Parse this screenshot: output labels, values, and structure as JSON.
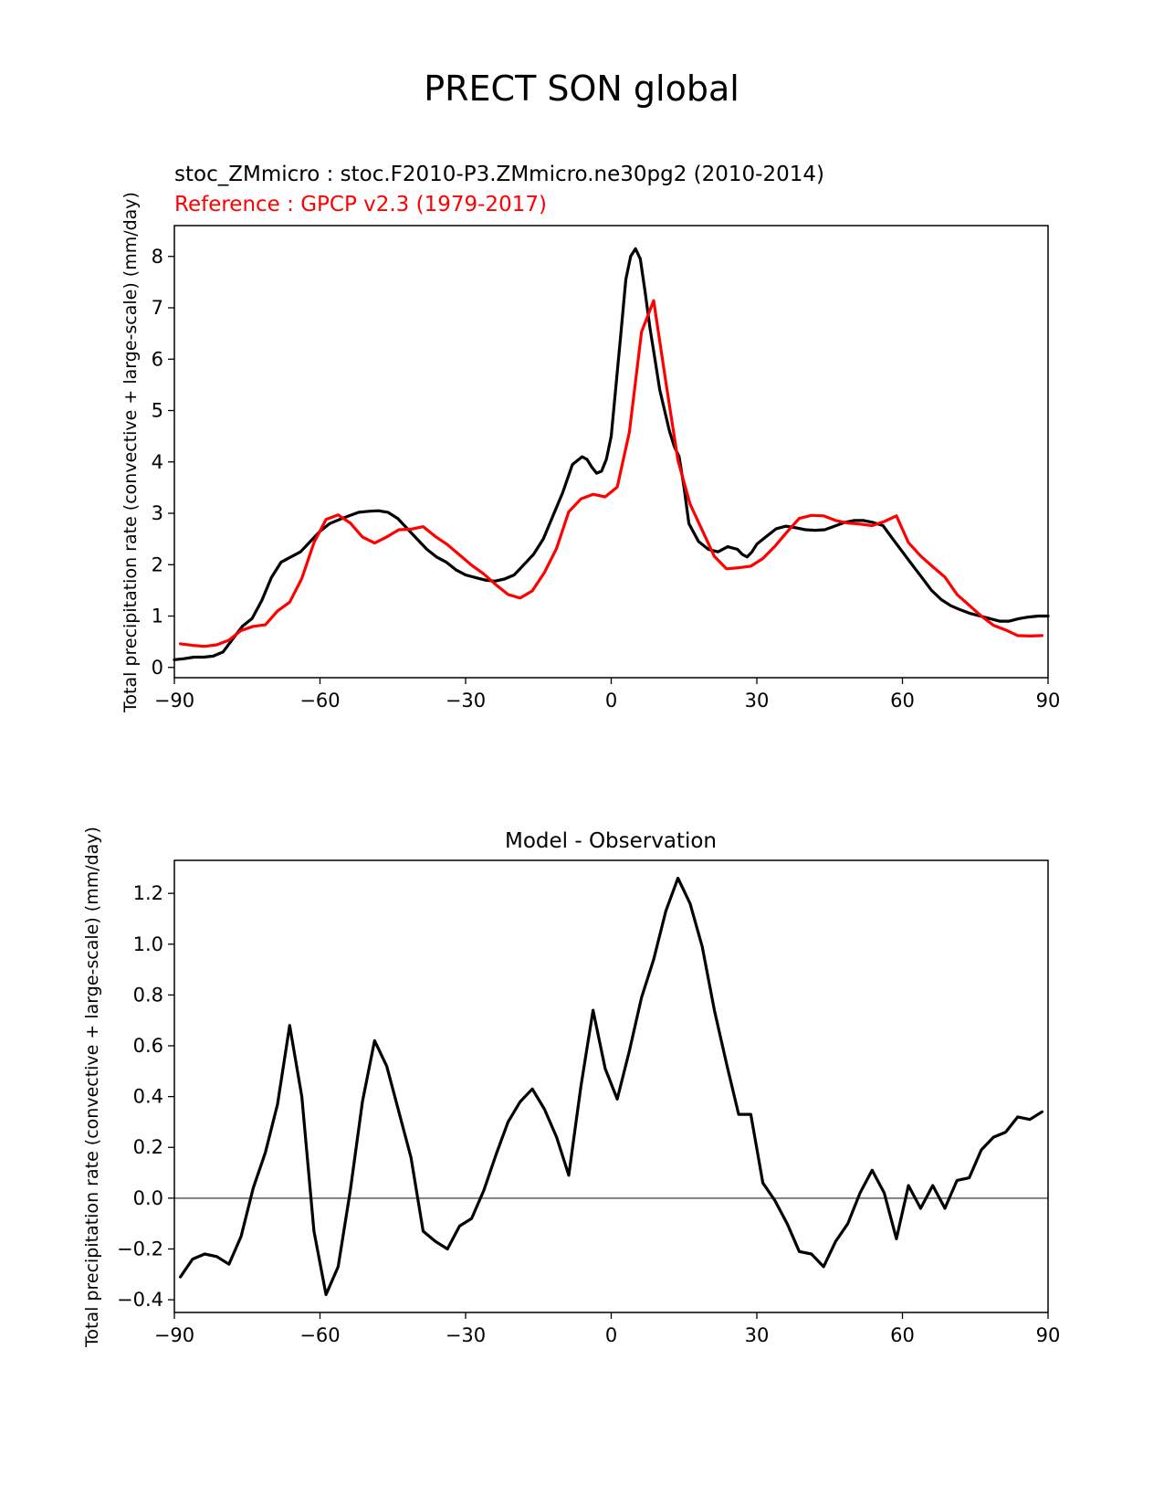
{
  "figure": {
    "suptitle": "PRECT SON global"
  },
  "chart_data": [
    {
      "type": "line",
      "title_left": "stoc_ZMmicro : stoc.F2010-P3.ZMmicro.ne30pg2 (2010-2014)",
      "title_left2": "Reference : GPCP v2.3 (1979-2017)",
      "title_left2_color": "#ff0000",
      "xlabel": "",
      "ylabel": "Total precipitation rate (convective + large-scale) (mm/day)",
      "xlim": [
        -90,
        90
      ],
      "ylim": [
        -0.2,
        8.6
      ],
      "xticks": [
        "−90",
        "−60",
        "−30",
        "0",
        "30",
        "60",
        "90"
      ],
      "xtick_values": [
        -90,
        -60,
        -30,
        0,
        30,
        60,
        90
      ],
      "yticks": [
        "0",
        "1",
        "2",
        "3",
        "4",
        "5",
        "6",
        "7",
        "8"
      ],
      "ytick_values": [
        0,
        1,
        2,
        3,
        4,
        5,
        6,
        7,
        8
      ],
      "grid": false,
      "series": [
        {
          "color": "#000000",
          "x": [
            -90,
            -88,
            -86,
            -84,
            -82,
            -80,
            -78,
            -76,
            -74,
            -72,
            -70,
            -68,
            -66,
            -64,
            -62,
            -60,
            -58,
            -56,
            -54,
            -52,
            -50,
            -48,
            -46,
            -44,
            -42,
            -40,
            -38,
            -36,
            -34,
            -32,
            -30,
            -28,
            -26,
            -24,
            -22,
            -20,
            -18,
            -16,
            -14,
            -12,
            -10,
            -8,
            -6,
            -5,
            -4,
            -3,
            -2,
            -1,
            0,
            1,
            2,
            3,
            4,
            5,
            6,
            7,
            8,
            9,
            10,
            11,
            12,
            13,
            14,
            15,
            16,
            18,
            20,
            22,
            24,
            26,
            27,
            28,
            29,
            30,
            32,
            34,
            36,
            38,
            40,
            42,
            44,
            46,
            48,
            50,
            52,
            54,
            56,
            58,
            60,
            62,
            64,
            66,
            68,
            70,
            72,
            74,
            76,
            78,
            80,
            82,
            84,
            86,
            88,
            90
          ],
          "values": [
            0.15,
            0.17,
            0.2,
            0.2,
            0.22,
            0.3,
            0.55,
            0.8,
            0.95,
            1.3,
            1.75,
            2.05,
            2.15,
            2.25,
            2.45,
            2.65,
            2.8,
            2.88,
            2.95,
            3.02,
            3.04,
            3.05,
            3.02,
            2.9,
            2.7,
            2.5,
            2.3,
            2.15,
            2.05,
            1.9,
            1.8,
            1.75,
            1.7,
            1.68,
            1.72,
            1.8,
            2.0,
            2.2,
            2.5,
            2.95,
            3.4,
            3.95,
            4.1,
            4.05,
            3.9,
            3.78,
            3.82,
            4.05,
            4.5,
            5.5,
            6.5,
            7.55,
            8.0,
            8.15,
            7.95,
            7.3,
            6.6,
            6.0,
            5.4,
            5.0,
            4.6,
            4.3,
            4.1,
            3.5,
            2.8,
            2.45,
            2.3,
            2.25,
            2.35,
            2.3,
            2.2,
            2.15,
            2.25,
            2.4,
            2.55,
            2.7,
            2.75,
            2.72,
            2.68,
            2.67,
            2.68,
            2.75,
            2.82,
            2.86,
            2.86,
            2.82,
            2.76,
            2.5,
            2.25,
            2.0,
            1.75,
            1.5,
            1.32,
            1.2,
            1.12,
            1.05,
            1.0,
            0.95,
            0.9,
            0.9,
            0.95,
            0.98,
            1.0,
            1.0
          ]
        },
        {
          "color": "#ff0000",
          "x": [
            -88.75,
            -86.25,
            -83.75,
            -81.25,
            -78.75,
            -76.25,
            -73.75,
            -71.25,
            -68.75,
            -66.25,
            -63.75,
            -61.25,
            -58.75,
            -56.25,
            -53.75,
            -51.25,
            -48.75,
            -46.25,
            -43.75,
            -41.25,
            -38.75,
            -36.25,
            -33.75,
            -31.25,
            -28.75,
            -26.25,
            -23.75,
            -21.25,
            -18.75,
            -16.25,
            -13.75,
            -11.25,
            -8.75,
            -6.25,
            -3.75,
            -1.25,
            1.25,
            3.75,
            6.25,
            8.75,
            11.25,
            13.75,
            16.25,
            18.75,
            21.25,
            23.75,
            26.25,
            28.75,
            31.25,
            33.75,
            36.25,
            38.75,
            41.25,
            43.75,
            46.25,
            48.75,
            51.25,
            53.75,
            56.25,
            58.75,
            61.25,
            63.75,
            66.25,
            68.75,
            71.25,
            73.75,
            76.25,
            78.75,
            81.25,
            83.75,
            86.25,
            88.75
          ],
          "values": [
            0.46,
            0.43,
            0.41,
            0.44,
            0.53,
            0.72,
            0.8,
            0.83,
            1.1,
            1.27,
            1.73,
            2.43,
            2.88,
            2.97,
            2.81,
            2.54,
            2.42,
            2.54,
            2.68,
            2.69,
            2.74,
            2.55,
            2.39,
            2.19,
            1.99,
            1.82,
            1.61,
            1.42,
            1.35,
            1.49,
            1.85,
            2.32,
            3.03,
            3.28,
            3.37,
            3.32,
            3.51,
            4.58,
            6.53,
            7.14,
            5.56,
            4.03,
            3.18,
            2.67,
            2.16,
            1.92,
            1.94,
            1.97,
            2.12,
            2.36,
            2.64,
            2.9,
            2.96,
            2.95,
            2.86,
            2.81,
            2.79,
            2.76,
            2.84,
            2.95,
            2.43,
            2.17,
            1.96,
            1.76,
            1.42,
            1.21,
            1.0,
            0.82,
            0.73,
            0.62,
            0.61,
            0.62
          ]
        }
      ]
    },
    {
      "type": "line",
      "title": "Model - Observation",
      "xlabel": "",
      "ylabel": "Total precipitation rate (convective + large-scale) (mm/day)",
      "xlim": [
        -90,
        90
      ],
      "ylim": [
        -0.45,
        1.33
      ],
      "xticks": [
        "−90",
        "−60",
        "−30",
        "0",
        "30",
        "60",
        "90"
      ],
      "xtick_values": [
        -90,
        -60,
        -30,
        0,
        30,
        60,
        90
      ],
      "yticks": [
        "−0.4",
        "−0.2",
        "0.0",
        "0.2",
        "0.4",
        "0.6",
        "0.8",
        "1.0",
        "1.2"
      ],
      "ytick_values": [
        -0.4,
        -0.2,
        0.0,
        0.2,
        0.4,
        0.6,
        0.8,
        1.0,
        1.2
      ],
      "grid": false,
      "zero_line_color": "#808080",
      "series": [
        {
          "color": "#000000",
          "x": [
            -88.75,
            -86.25,
            -83.75,
            -81.25,
            -78.75,
            -76.25,
            -73.75,
            -71.25,
            -68.75,
            -66.25,
            -63.75,
            -61.25,
            -58.75,
            -56.25,
            -53.75,
            -51.25,
            -48.75,
            -46.25,
            -43.75,
            -41.25,
            -38.75,
            -36.25,
            -33.75,
            -31.25,
            -28.75,
            -26.25,
            -23.75,
            -21.25,
            -18.75,
            -16.25,
            -13.75,
            -11.25,
            -8.75,
            -6.25,
            -3.75,
            -1.25,
            1.25,
            3.75,
            6.25,
            8.75,
            11.25,
            13.75,
            16.25,
            18.75,
            21.25,
            23.75,
            26.25,
            28.75,
            31.25,
            33.75,
            36.25,
            38.75,
            41.25,
            43.75,
            46.25,
            48.75,
            51.25,
            53.75,
            56.25,
            58.75,
            61.25,
            63.75,
            66.25,
            68.75,
            71.25,
            73.75,
            76.25,
            78.75,
            81.25,
            83.75,
            86.25,
            88.75
          ],
          "values": [
            -0.31,
            -0.24,
            -0.22,
            -0.23,
            -0.26,
            -0.15,
            0.04,
            0.18,
            0.37,
            0.68,
            0.4,
            -0.13,
            -0.38,
            -0.27,
            0.03,
            0.38,
            0.62,
            0.52,
            0.34,
            0.16,
            -0.13,
            -0.17,
            -0.2,
            -0.11,
            -0.08,
            0.03,
            0.17,
            0.3,
            0.38,
            0.43,
            0.35,
            0.24,
            0.09,
            0.44,
            0.74,
            0.51,
            0.39,
            0.58,
            0.79,
            0.94,
            1.13,
            1.26,
            1.16,
            0.99,
            0.74,
            0.53,
            0.33,
            0.33,
            0.06,
            -0.01,
            -0.1,
            -0.21,
            -0.22,
            -0.27,
            -0.17,
            -0.1,
            0.02,
            0.11,
            0.02,
            -0.16,
            0.05,
            -0.04,
            0.05,
            -0.04,
            0.07,
            0.08,
            0.19,
            0.24,
            0.26,
            0.32,
            0.31,
            0.34
          ]
        }
      ]
    }
  ]
}
